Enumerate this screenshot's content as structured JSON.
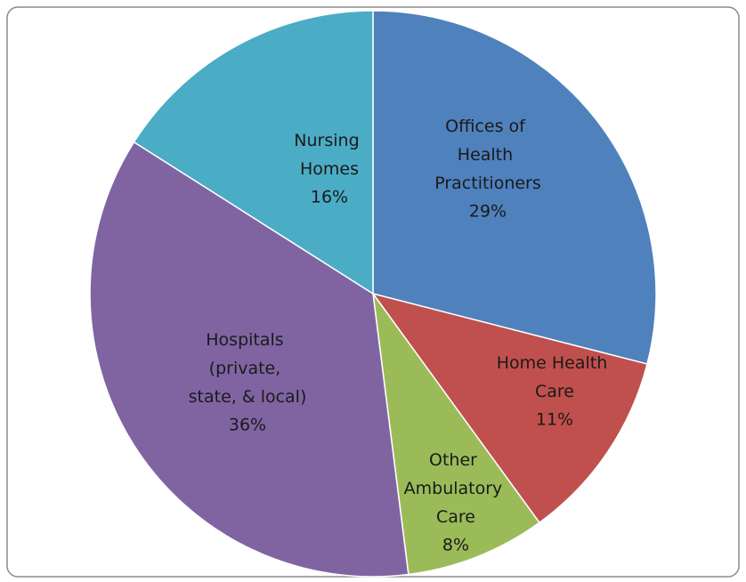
{
  "chart_data": {
    "type": "pie",
    "categories": [
      "Offices of Health Practitioners",
      "Home Health Care",
      "Other Ambulatory Care",
      "Hospitals (private, state, & local)",
      "Nursing Homes"
    ],
    "values": [
      29,
      11,
      8,
      36,
      16
    ],
    "value_labels": [
      "29%",
      "11%",
      "8%",
      "36%",
      "16%"
    ],
    "colors": [
      "#4f81bd",
      "#c0504d",
      "#9bbb59",
      "#8064a2",
      "#4bacc6"
    ]
  }
}
